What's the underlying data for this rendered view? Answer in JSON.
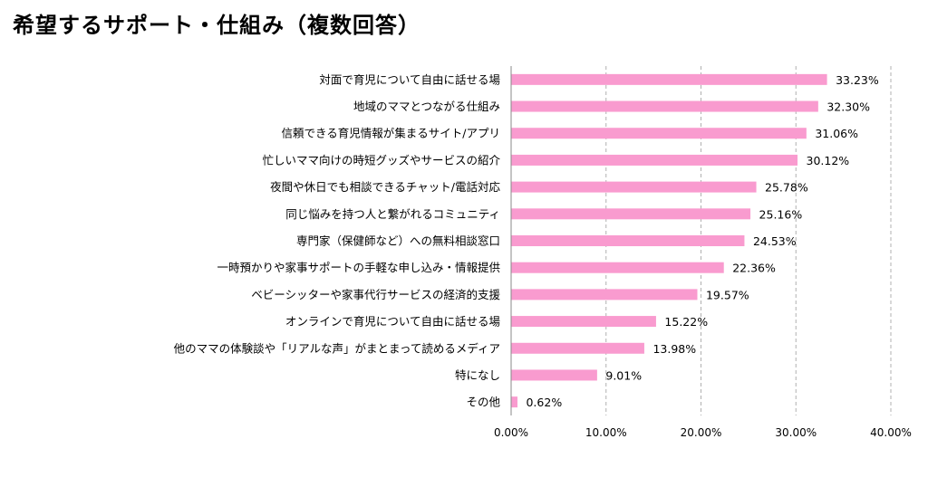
{
  "title": "希望するサポート・仕組み（複数回答）",
  "chart_data": {
    "type": "bar",
    "orientation": "horizontal",
    "title": "希望するサポート・仕組み（複数回答）",
    "categories": [
      "対面で育児について自由に話せる場",
      "地域のママとつながる仕組み",
      "信頼できる育児情報が集まるサイト/アプリ",
      "忙しいママ向けの時短グッズやサービスの紹介",
      "夜間や休日でも相談できるチャット/電話対応",
      "同じ悩みを持つ人と繋がれるコミュニティ",
      "専門家（保健師など）への無料相談窓口",
      "一時預かりや家事サポートの手軽な申し込み・情報提供",
      "ベビーシッターや家事代行サービスの経済的支援",
      "オンラインで育児について自由に話せる場",
      "他のママの体験談や「リアルな声」がまとまって読めるメディア",
      "特になし",
      "その他"
    ],
    "values": [
      33.23,
      32.3,
      31.06,
      30.12,
      25.78,
      25.16,
      24.53,
      22.36,
      19.57,
      15.22,
      13.98,
      9.01,
      0.62
    ],
    "value_labels": [
      "33.23%",
      "32.30%",
      "31.06%",
      "30.12%",
      "25.78%",
      "25.16%",
      "24.53%",
      "22.36%",
      "19.57%",
      "15.22%",
      "13.98%",
      "9.01%",
      "0.62%"
    ],
    "xlim": [
      0,
      40
    ],
    "xticks": [
      0,
      10,
      20,
      30,
      40
    ],
    "xtick_labels": [
      "0.00%",
      "10.00%",
      "20.00%",
      "30.00%",
      "40.00%"
    ],
    "grid": "vertical dashed",
    "bar_color": "#f99bcf"
  }
}
